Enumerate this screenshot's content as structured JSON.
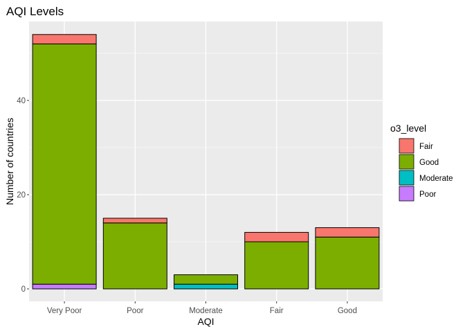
{
  "chart_data": {
    "type": "bar",
    "stacked": true,
    "title": "AQI Levels",
    "xlabel": "AQI",
    "ylabel": "Number of countries",
    "categories": [
      "Very Poor",
      "Poor",
      "Moderate",
      "Fair",
      "Good"
    ],
    "ylim": [
      0,
      56.7
    ],
    "yticks": [
      0,
      20,
      40
    ],
    "grid": true,
    "legend_title": "o3_level",
    "legend_position": "right",
    "series": [
      {
        "name": "Poor",
        "color": "#C77CFF",
        "values": [
          1,
          0,
          0,
          0,
          0
        ]
      },
      {
        "name": "Moderate",
        "color": "#00BFC4",
        "values": [
          0,
          0,
          1,
          0,
          0
        ]
      },
      {
        "name": "Good",
        "color": "#7CAE00",
        "values": [
          51,
          14,
          2,
          10,
          11
        ]
      },
      {
        "name": "Fair",
        "color": "#F8766D",
        "values": [
          2,
          1,
          0,
          2,
          2
        ]
      }
    ],
    "legend_order": [
      "Fair",
      "Good",
      "Moderate",
      "Poor"
    ]
  }
}
